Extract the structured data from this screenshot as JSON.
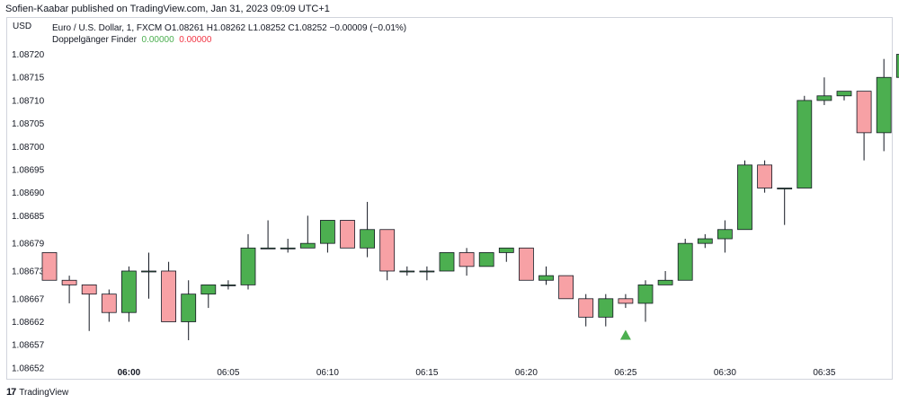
{
  "header": {
    "publisher": "Sofien-Kaabar published on TradingView.com, Jan 31, 2023 09:09 UTC+1"
  },
  "legend": {
    "symbol_line": "Euro / U.S. Dollar, 1, FXCM  O1.08261  H1.08262  L1.08252  C1.08252  −0.00009 (−0.01%)",
    "indicator_name": "Doppelgänger Finder",
    "indicator_value1": "0.00000",
    "indicator_value2": "0.00000"
  },
  "currency": "USD",
  "footer": {
    "brand": "TradingView",
    "logo_text": "17"
  },
  "colors": {
    "up": "#4caf50",
    "down": "#f7a1a5",
    "wick": "#131722",
    "signal": "#4caf50"
  },
  "chart_data": {
    "type": "candlestick",
    "y_ticks": [
      "1.08720",
      "1.08715",
      "1.08710",
      "1.08705",
      "1.08700",
      "1.08695",
      "1.08690",
      "1.08685",
      "1.08679",
      "1.08673",
      "1.08667",
      "1.08662",
      "1.08657",
      "1.08652"
    ],
    "ylim": [
      1.08651,
      1.08724
    ],
    "x_ticks": [
      {
        "label": "06:00",
        "bar": 4,
        "bold": true
      },
      {
        "label": "06:05",
        "bar": 9,
        "bold": false
      },
      {
        "label": "06:10",
        "bar": 14,
        "bold": false
      },
      {
        "label": "06:15",
        "bar": 19,
        "bold": false
      },
      {
        "label": "06:20",
        "bar": 24,
        "bold": false
      },
      {
        "label": "06:25",
        "bar": 29,
        "bold": false
      },
      {
        "label": "06:30",
        "bar": 34,
        "bold": false
      },
      {
        "label": "06:35",
        "bar": 39,
        "bold": false
      }
    ],
    "candles": [
      {
        "o": 1.08677,
        "h": 1.08677,
        "l": 1.08671,
        "c": 1.08671
      },
      {
        "o": 1.08671,
        "h": 1.08672,
        "l": 1.08666,
        "c": 1.0867
      },
      {
        "o": 1.0867,
        "h": 1.0867,
        "l": 1.0866,
        "c": 1.08668
      },
      {
        "o": 1.08668,
        "h": 1.08669,
        "l": 1.08662,
        "c": 1.08664
      },
      {
        "o": 1.08664,
        "h": 1.08674,
        "l": 1.08662,
        "c": 1.08673
      },
      {
        "o": 1.08673,
        "h": 1.08677,
        "l": 1.08667,
        "c": 1.08673
      },
      {
        "o": 1.08673,
        "h": 1.08675,
        "l": 1.08662,
        "c": 1.08662
      },
      {
        "o": 1.08662,
        "h": 1.08671,
        "l": 1.08658,
        "c": 1.08668
      },
      {
        "o": 1.08668,
        "h": 1.0867,
        "l": 1.08665,
        "c": 1.0867
      },
      {
        "o": 1.0867,
        "h": 1.08671,
        "l": 1.08669,
        "c": 1.0867
      },
      {
        "o": 1.0867,
        "h": 1.08681,
        "l": 1.08669,
        "c": 1.08678
      },
      {
        "o": 1.08678,
        "h": 1.08684,
        "l": 1.08678,
        "c": 1.08678
      },
      {
        "o": 1.08678,
        "h": 1.0868,
        "l": 1.08677,
        "c": 1.08678
      },
      {
        "o": 1.08678,
        "h": 1.08685,
        "l": 1.08678,
        "c": 1.08679
      },
      {
        "o": 1.08679,
        "h": 1.08684,
        "l": 1.08677,
        "c": 1.08684
      },
      {
        "o": 1.08684,
        "h": 1.08684,
        "l": 1.08678,
        "c": 1.08678
      },
      {
        "o": 1.08678,
        "h": 1.08688,
        "l": 1.08676,
        "c": 1.08682
      },
      {
        "o": 1.08682,
        "h": 1.08682,
        "l": 1.08671,
        "c": 1.08673
      },
      {
        "o": 1.08673,
        "h": 1.08674,
        "l": 1.08672,
        "c": 1.08673
      },
      {
        "o": 1.08673,
        "h": 1.08674,
        "l": 1.08671,
        "c": 1.08673
      },
      {
        "o": 1.08673,
        "h": 1.08677,
        "l": 1.08673,
        "c": 1.08677
      },
      {
        "o": 1.08677,
        "h": 1.08678,
        "l": 1.08672,
        "c": 1.08674
      },
      {
        "o": 1.08674,
        "h": 1.08677,
        "l": 1.08674,
        "c": 1.08677
      },
      {
        "o": 1.08677,
        "h": 1.08678,
        "l": 1.08675,
        "c": 1.08678
      },
      {
        "o": 1.08678,
        "h": 1.08678,
        "l": 1.08671,
        "c": 1.08671
      },
      {
        "o": 1.08671,
        "h": 1.08674,
        "l": 1.0867,
        "c": 1.08672
      },
      {
        "o": 1.08672,
        "h": 1.08672,
        "l": 1.08667,
        "c": 1.08667
      },
      {
        "o": 1.08667,
        "h": 1.08668,
        "l": 1.08661,
        "c": 1.08663
      },
      {
        "o": 1.08663,
        "h": 1.08668,
        "l": 1.08661,
        "c": 1.08667
      },
      {
        "o": 1.08667,
        "h": 1.08668,
        "l": 1.08665,
        "c": 1.08666
      },
      {
        "o": 1.08666,
        "h": 1.08671,
        "l": 1.08662,
        "c": 1.0867
      },
      {
        "o": 1.0867,
        "h": 1.08673,
        "l": 1.0867,
        "c": 1.08671
      },
      {
        "o": 1.08671,
        "h": 1.0868,
        "l": 1.08671,
        "c": 1.08679
      },
      {
        "o": 1.08679,
        "h": 1.08681,
        "l": 1.08678,
        "c": 1.0868
      },
      {
        "o": 1.0868,
        "h": 1.08684,
        "l": 1.08677,
        "c": 1.08682
      },
      {
        "o": 1.08682,
        "h": 1.08697,
        "l": 1.08682,
        "c": 1.08696
      },
      {
        "o": 1.08696,
        "h": 1.08697,
        "l": 1.0869,
        "c": 1.08691
      },
      {
        "o": 1.08691,
        "h": 1.08691,
        "l": 1.08683,
        "c": 1.08691
      },
      {
        "o": 1.08691,
        "h": 1.08711,
        "l": 1.08691,
        "c": 1.0871
      },
      {
        "o": 1.0871,
        "h": 1.08715,
        "l": 1.08709,
        "c": 1.08711
      },
      {
        "o": 1.08711,
        "h": 1.08712,
        "l": 1.0871,
        "c": 1.08712
      },
      {
        "o": 1.08712,
        "h": 1.08712,
        "l": 1.08697,
        "c": 1.08703
      },
      {
        "o": 1.08703,
        "h": 1.08719,
        "l": 1.08699,
        "c": 1.08715
      },
      {
        "o": 1.08715,
        "h": 1.0872,
        "l": 1.08715,
        "c": 1.0872
      }
    ],
    "signals": [
      {
        "bar": 29,
        "y": 1.08662,
        "shape": "triangle-up"
      }
    ]
  }
}
